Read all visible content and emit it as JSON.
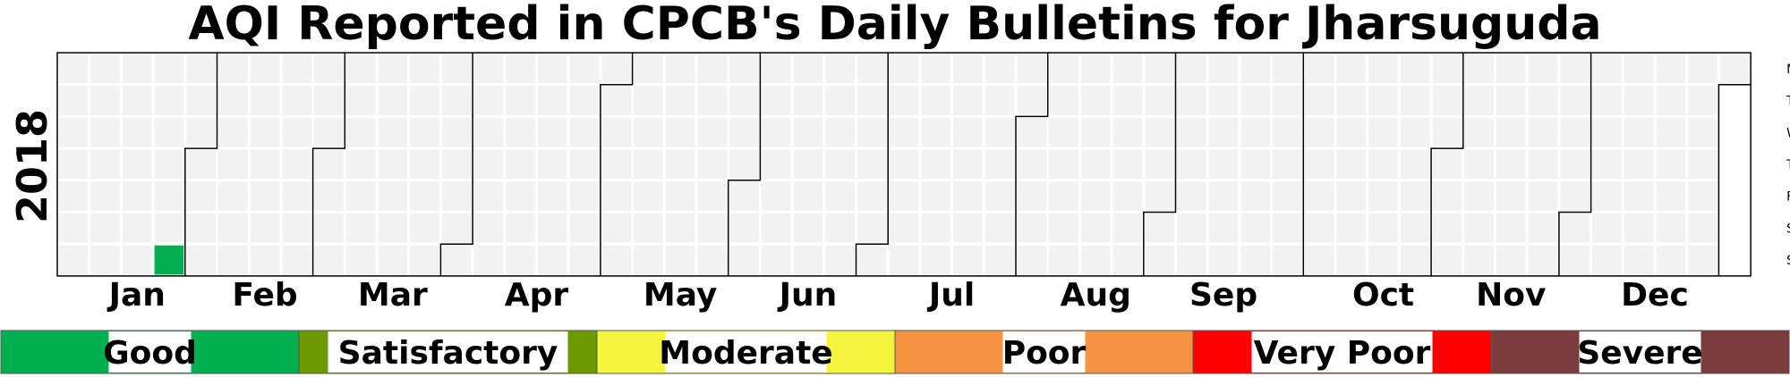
{
  "chart_data": {
    "type": "heatmap",
    "title": "AQI Reported in CPCB's Daily Bulletins for Jharsuguda",
    "year": "2018",
    "weekday_labels": [
      "Mon",
      "Tue",
      "Wed",
      "Thu",
      "Fri",
      "Sat",
      "Sun"
    ],
    "month_labels": [
      "Jan",
      "Feb",
      "Mar",
      "Apr",
      "May",
      "Jun",
      "Jul",
      "Aug",
      "Sep",
      "Oct",
      "Nov",
      "Dec"
    ],
    "grid": true,
    "legend_placement": "bottom",
    "data": [
      {
        "date": "2018-01-28",
        "category": "Good"
      }
    ],
    "categories": [
      {
        "name": "Good",
        "color": "#00b050"
      },
      {
        "name": "Satisfactory",
        "color": "#6a9a00"
      },
      {
        "name": "Moderate",
        "color": "#f4f53c"
      },
      {
        "name": "Poor",
        "color": "#f59342"
      },
      {
        "name": "Very Poor",
        "color": "#fe0000"
      },
      {
        "name": "Severe",
        "color": "#7a3c3c"
      }
    ],
    "no_data_color": "#f2f2f2"
  }
}
